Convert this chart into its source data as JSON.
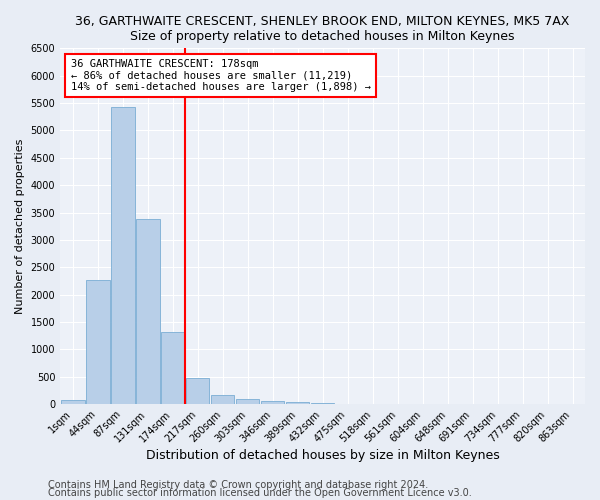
{
  "title": "36, GARTHWAITE CRESCENT, SHENLEY BROOK END, MILTON KEYNES, MK5 7AX",
  "subtitle": "Size of property relative to detached houses in Milton Keynes",
  "xlabel": "Distribution of detached houses by size in Milton Keynes",
  "ylabel": "Number of detached properties",
  "categories": [
    "1sqm",
    "44sqm",
    "87sqm",
    "131sqm",
    "174sqm",
    "217sqm",
    "260sqm",
    "303sqm",
    "346sqm",
    "389sqm",
    "432sqm",
    "475sqm",
    "518sqm",
    "561sqm",
    "604sqm",
    "648sqm",
    "691sqm",
    "734sqm",
    "777sqm",
    "820sqm",
    "863sqm"
  ],
  "values": [
    70,
    2270,
    5430,
    3390,
    1310,
    475,
    160,
    85,
    55,
    40,
    20,
    10,
    5,
    3,
    2,
    1,
    1,
    1,
    0,
    0,
    0
  ],
  "bar_color": "#b8cfe8",
  "bar_edgecolor": "#7aadd4",
  "vline_index": 4.5,
  "vline_color": "red",
  "annotation_title": "36 GARTHWAITE CRESCENT: 178sqm",
  "annotation_line1": "← 86% of detached houses are smaller (11,219)",
  "annotation_line2": "14% of semi-detached houses are larger (1,898) →",
  "ylim": [
    0,
    6500
  ],
  "yticks": [
    0,
    500,
    1000,
    1500,
    2000,
    2500,
    3000,
    3500,
    4000,
    4500,
    5000,
    5500,
    6000,
    6500
  ],
  "footer1": "Contains HM Land Registry data © Crown copyright and database right 2024.",
  "footer2": "Contains public sector information licensed under the Open Government Licence v3.0.",
  "bg_color": "#e8edf5",
  "plot_bg_color": "#edf1f8",
  "title_fontsize": 9,
  "subtitle_fontsize": 9,
  "xlabel_fontsize": 9,
  "ylabel_fontsize": 8,
  "tick_fontsize": 7,
  "footer_fontsize": 7,
  "annot_fontsize": 7.5
}
